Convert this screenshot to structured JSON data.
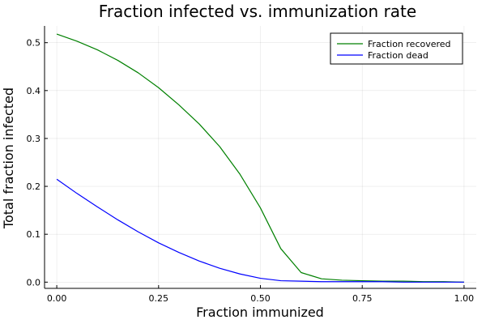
{
  "chart_data": {
    "type": "line",
    "title": "Fraction infected vs. immunization rate",
    "xlabel": "Fraction immunized",
    "ylabel": "Total fraction infected",
    "xlim": [
      0,
      1
    ],
    "ylim": [
      0,
      0.5
    ],
    "x_ticks": [
      "0.00",
      "0.25",
      "0.50",
      "0.75",
      "1.00"
    ],
    "y_ticks": [
      "0.0",
      "0.1",
      "0.2",
      "0.3",
      "0.4",
      "0.5"
    ],
    "grid": true,
    "legend_position": "top-right",
    "x": [
      0.0,
      0.05,
      0.1,
      0.15,
      0.2,
      0.25,
      0.3,
      0.35,
      0.4,
      0.45,
      0.5,
      0.55,
      0.6,
      0.65,
      0.7,
      0.75,
      0.8,
      0.85,
      0.9,
      0.95,
      1.0
    ],
    "series": [
      {
        "name": "Fraction recovered",
        "color": "#008000",
        "values": [
          0.518,
          0.503,
          0.485,
          0.463,
          0.437,
          0.406,
          0.37,
          0.33,
          0.283,
          0.225,
          0.155,
          0.07,
          0.02,
          0.007,
          0.004,
          0.003,
          0.002,
          0.002,
          0.001,
          0.001,
          0.0
        ]
      },
      {
        "name": "Fraction dead",
        "color": "#0000ff",
        "values": [
          0.215,
          0.185,
          0.157,
          0.13,
          0.105,
          0.082,
          0.062,
          0.044,
          0.029,
          0.017,
          0.008,
          0.003,
          0.002,
          0.001,
          0.001,
          0.001,
          0.001,
          0.0,
          0.0,
          0.0,
          0.0
        ]
      }
    ]
  }
}
